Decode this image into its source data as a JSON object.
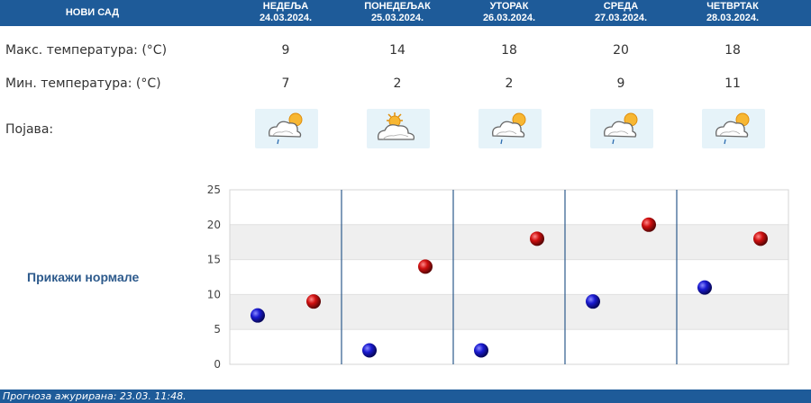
{
  "header": {
    "city": "НОВИ САД",
    "days": [
      {
        "name": "НЕДЕЉА",
        "date": "24.03.2024."
      },
      {
        "name": "ПОНЕДЕЉАК",
        "date": "25.03.2024."
      },
      {
        "name": "УТОРАК",
        "date": "26.03.2024."
      },
      {
        "name": "СРЕДА",
        "date": "27.03.2024."
      },
      {
        "name": "ЧЕТВРТАК",
        "date": "28.03.2024."
      }
    ]
  },
  "rows": {
    "max_label": "Макс. температура: (°C)",
    "min_label": "Мин. температура: (°C)",
    "phen_label": "Појава:",
    "max": [
      "9",
      "14",
      "18",
      "20",
      "18"
    ],
    "min": [
      "7",
      "2",
      "2",
      "9",
      "11"
    ],
    "icons": [
      "cloud-sun-rain-icon",
      "sun-cloud-icon",
      "cloud-sun-rain-icon",
      "cloud-sun-rain-icon",
      "cloud-sun-rain-icon"
    ]
  },
  "normale_link": "Прикажи нормале",
  "chart_data": {
    "type": "scatter",
    "categories": [
      "24.03.2024.",
      "25.03.2024.",
      "26.03.2024.",
      "27.03.2024.",
      "28.03.2024."
    ],
    "series": [
      {
        "values": [
          7,
          2,
          2,
          9,
          11
        ],
        "color": "#1a1aa8"
      },
      {
        "values": [
          9,
          14,
          18,
          20,
          18
        ],
        "color": "#c01010"
      }
    ],
    "ylim": [
      0,
      25
    ],
    "yticks": [
      "0",
      "5",
      "10",
      "15",
      "20",
      "25"
    ],
    "grid": true
  },
  "footer": "Прогноза ажурирана:  23.03.  11:48.",
  "colors": {
    "header": "#1e5b99",
    "min_marker": "#1a1aa8",
    "max_marker": "#c01010",
    "band": "#efefef"
  }
}
